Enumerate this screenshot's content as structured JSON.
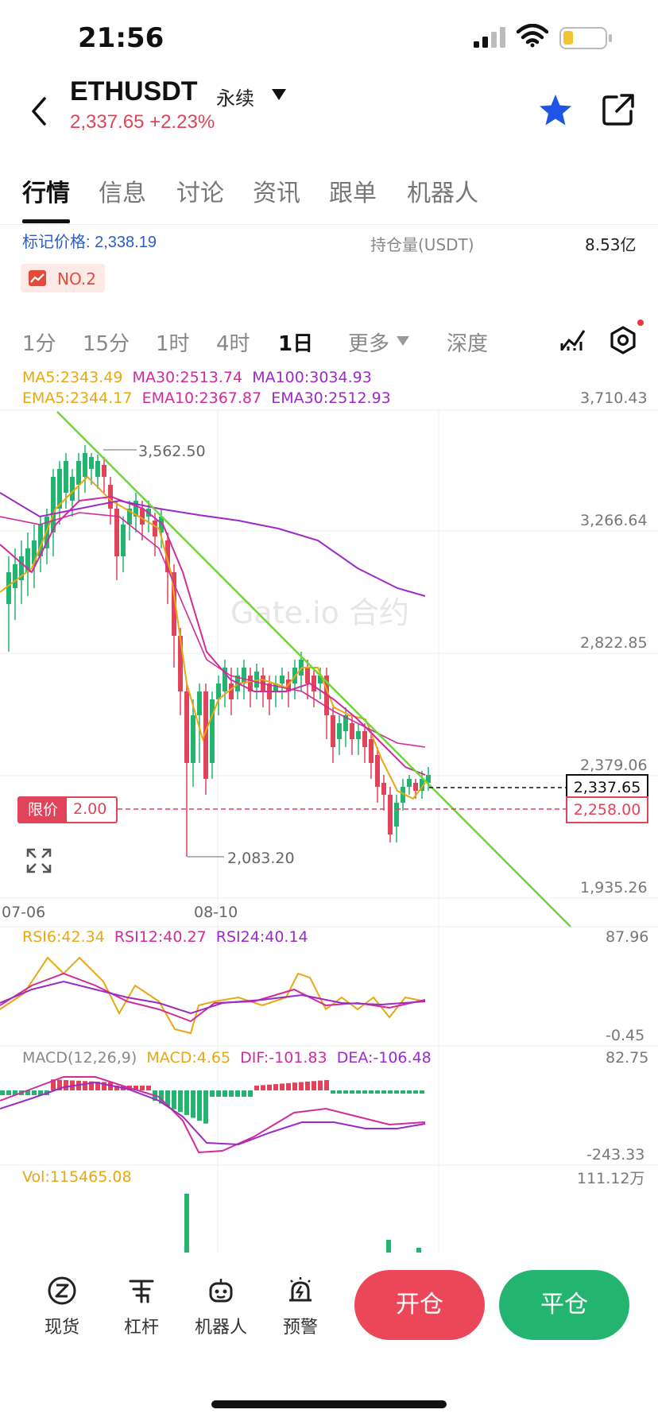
{
  "status_bar": {
    "time": "21:56"
  },
  "header": {
    "symbol": "ETHUSDT",
    "contract_type": "永续",
    "price_change": "2,337.65 +2.23%",
    "icons": [
      "back-icon",
      "star-icon",
      "share-icon"
    ]
  },
  "tabs": [
    "行情",
    "信息",
    "讨论",
    "资讯",
    "跟单",
    "机器人"
  ],
  "info": {
    "mark_price": "标记价格: 2,338.19",
    "open_interest_label": "持仓量(USDT)",
    "open_interest_value": "8.53亿",
    "rank": "NO.2"
  },
  "timeframes": [
    "1分",
    "15分",
    "1时",
    "4时",
    "1日",
    "更多",
    "深度"
  ],
  "active_timeframe": "1日",
  "indicators": {
    "ma_line": [
      {
        "text": "MA5:2343.49",
        "color": "#e8a813"
      },
      {
        "text": "MA30:2513.74",
        "color": "#d02c9b"
      },
      {
        "text": "MA100:3034.93",
        "color": "#9c2bc6"
      }
    ],
    "ema_line": [
      {
        "text": "EMA5:2344.17",
        "color": "#e8a813"
      },
      {
        "text": "EMA10:2367.87",
        "color": "#d02c9b"
      },
      {
        "text": "EMA30:2512.93",
        "color": "#9c2bc6"
      }
    ],
    "rsi_line": [
      {
        "text": "RSI6:42.34",
        "color": "#e8a813"
      },
      {
        "text": "RSI12:40.27",
        "color": "#d02c9b"
      },
      {
        "text": "RSI24:40.14",
        "color": "#9c2bc6"
      }
    ],
    "macd_line": [
      {
        "text": "MACD(12,26,9)",
        "color": "#888888"
      },
      {
        "text": "MACD:4.65",
        "color": "#e8a813"
      },
      {
        "text": "DIF:-101.83",
        "color": "#d02c9b"
      },
      {
        "text": "DEA:-106.48",
        "color": "#9c2bc6"
      }
    ],
    "vol": "Vol:115465.08"
  },
  "price_scale": [
    "3,710.43",
    "3,266.64",
    "2,822.85",
    "2,379.06",
    "1,935.26"
  ],
  "rsi_scale": [
    "87.96",
    "-0.45"
  ],
  "macd_scale": [
    "82.75",
    "-243.33"
  ],
  "vol_scale": [
    "111.12万"
  ],
  "date_labels": [
    "07-06",
    "08-10"
  ],
  "annotations": {
    "high": "3,562.50",
    "low": "2,083.20"
  },
  "current_price_tag": "2,337.65",
  "limit_price_tag": "2,258.00",
  "limit_order": {
    "label": "限价",
    "value": "2.00"
  },
  "watermark": "Gate.io 合约",
  "bottom_nav": [
    "现货",
    "杠杆",
    "机器人",
    "预警"
  ],
  "actions": {
    "open": "开仓",
    "close": "平仓"
  },
  "colors": {
    "up": "#23b46f",
    "down": "#e0435a",
    "accent_blue": "#2a5dc9",
    "trendline": "#6fd63a"
  }
}
